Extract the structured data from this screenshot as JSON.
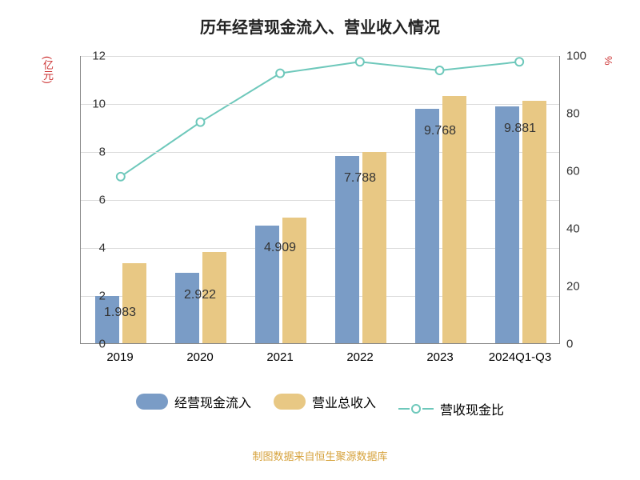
{
  "title": {
    "text": "历年经营现金流入、营业收入情况",
    "fontsize": 20,
    "color": "#222222"
  },
  "chart": {
    "type": "bar+line",
    "background_color": "#ffffff",
    "grid_color": "#dcdcdc",
    "axis_color": "#888888",
    "categories": [
      "2019",
      "2020",
      "2021",
      "2022",
      "2023",
      "2024Q1-Q3"
    ],
    "y_left": {
      "label": "(亿元)",
      "label_color": "#cc3333",
      "min": 0,
      "max": 12,
      "step": 2,
      "tick_color": "#333333",
      "tick_fontsize": 15
    },
    "y_right": {
      "label": "%",
      "label_color": "#cc3333",
      "min": 0,
      "max": 100,
      "step": 20,
      "tick_color": "#333333",
      "tick_fontsize": 15
    },
    "bars": {
      "width": 30,
      "gap": 4,
      "series": [
        {
          "name": "经营现金流入",
          "color": "#7a9cc6",
          "values": [
            1.983,
            2.922,
            4.909,
            7.788,
            9.768,
            9.881
          ]
        },
        {
          "name": "营业总收入",
          "color": "#e8c884",
          "values": [
            3.35,
            3.8,
            5.25,
            7.98,
            10.3,
            10.1
          ]
        }
      ],
      "label_series_index": 0,
      "label_values": [
        "1.983",
        "2.922",
        "4.909",
        "7.788",
        "9.768",
        "9.881"
      ],
      "label_fontsize": 16
    },
    "line": {
      "name": "营收现金比",
      "color": "#6ec8bb",
      "stroke_width": 2,
      "marker_radius": 5,
      "marker_fill": "#ffffff",
      "values": [
        58,
        77,
        94,
        98,
        95,
        98
      ]
    }
  },
  "legend": {
    "items": [
      {
        "type": "swatch",
        "label": "经营现金流入",
        "color": "#7a9cc6"
      },
      {
        "type": "swatch",
        "label": "营业总收入",
        "color": "#e8c884"
      },
      {
        "type": "line",
        "label": "营收现金比",
        "color": "#6ec8bb"
      }
    ],
    "fontsize": 16
  },
  "footer": {
    "text": "制图数据来自恒生聚源数据库",
    "color": "#d6a23c",
    "fontsize": 13
  }
}
